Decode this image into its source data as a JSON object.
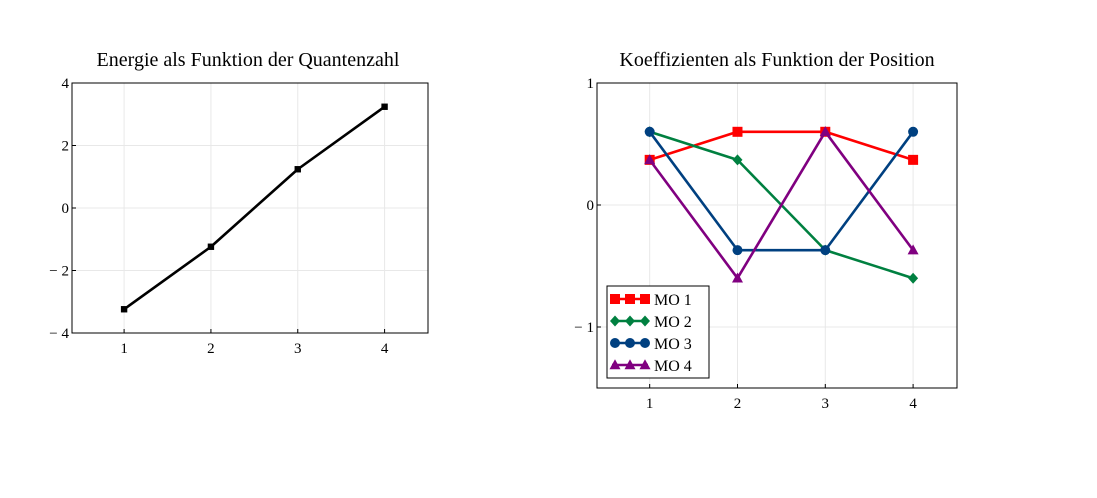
{
  "chart_data": [
    {
      "type": "line",
      "title": "Energie als Funktion der Quantenzahl",
      "xlabel": "",
      "ylabel": "",
      "xlim": [
        0.4,
        4.5
      ],
      "ylim": [
        -4,
        4
      ],
      "xticks": [
        1,
        2,
        3,
        4
      ],
      "xtick_labels": [
        "1",
        "2",
        "3",
        "4"
      ],
      "yticks": [
        -4,
        -2,
        0,
        2,
        4
      ],
      "ytick_labels": [
        "− 4",
        "− 2",
        "0",
        "2",
        "4"
      ],
      "grid": true,
      "legend": "none",
      "series": [
        {
          "x": [
            1,
            2,
            3,
            4
          ],
          "values": [
            -3.24,
            -1.24,
            1.24,
            3.24
          ],
          "color": "#000000",
          "marker": "square"
        }
      ]
    },
    {
      "type": "line",
      "title": "Koeffizienten als Funktion der Position",
      "xlabel": "",
      "ylabel": "",
      "xlim": [
        0.4,
        4.5
      ],
      "ylim": [
        -1.5,
        1
      ],
      "xticks": [
        1,
        2,
        3,
        4
      ],
      "xtick_labels": [
        "1",
        "2",
        "3",
        "4"
      ],
      "yticks": [
        -1,
        0,
        1
      ],
      "ytick_labels": [
        "− 1",
        "0",
        "1"
      ],
      "grid": true,
      "legend": "bottom-left",
      "series": [
        {
          "name": "MO 1",
          "x": [
            1,
            2,
            3,
            4
          ],
          "values": [
            0.37,
            0.6,
            0.6,
            0.37
          ],
          "color": "#ff0000",
          "marker": "square"
        },
        {
          "name": "MO 2",
          "x": [
            1,
            2,
            3,
            4
          ],
          "values": [
            0.6,
            0.37,
            -0.37,
            -0.6
          ],
          "color": "#008040",
          "marker": "diamond"
        },
        {
          "name": "MO 3",
          "x": [
            1,
            2,
            3,
            4
          ],
          "values": [
            0.6,
            -0.37,
            -0.37,
            0.6
          ],
          "color": "#004080",
          "marker": "circle"
        },
        {
          "name": "MO 4",
          "x": [
            1,
            2,
            3,
            4
          ],
          "values": [
            0.37,
            -0.6,
            0.6,
            -0.37
          ],
          "color": "#800080",
          "marker": "triangle"
        }
      ]
    }
  ]
}
